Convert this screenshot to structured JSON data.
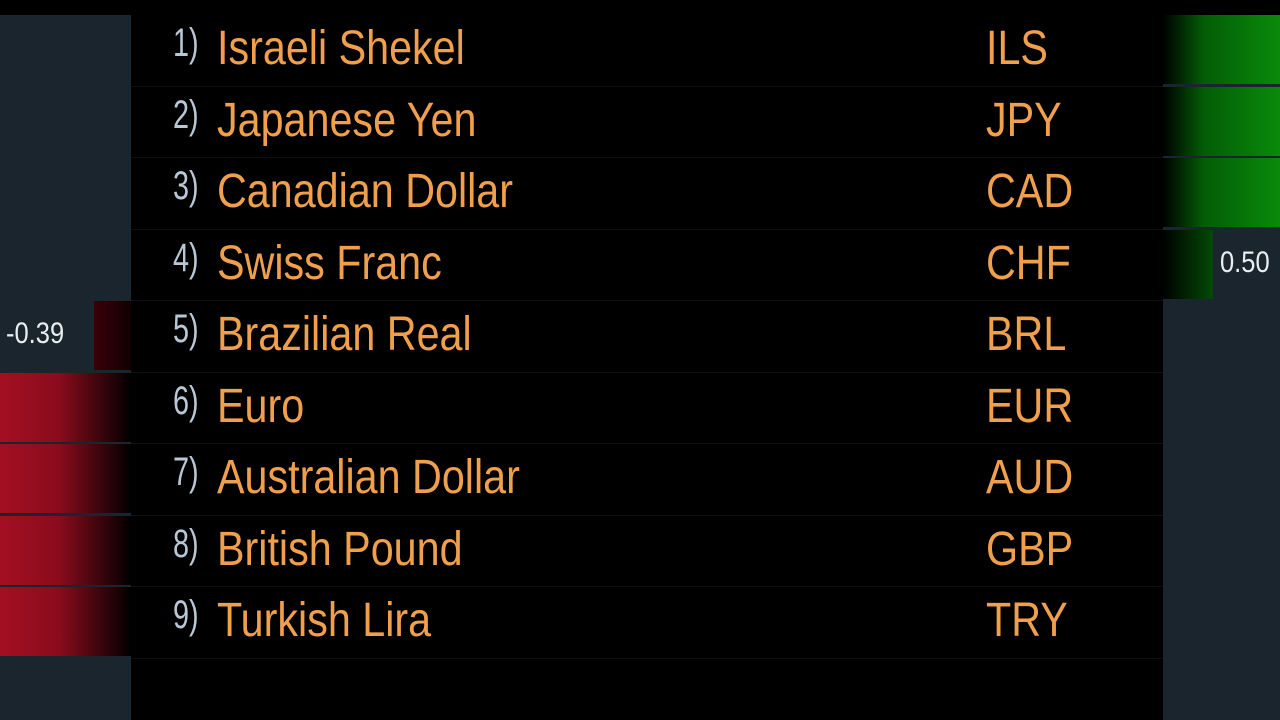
{
  "currencies": [
    {
      "index": "1)",
      "name": "Israeli Shekel",
      "code": "ILS"
    },
    {
      "index": "2)",
      "name": "Japanese Yen",
      "code": "JPY"
    },
    {
      "index": "3)",
      "name": "Canadian Dollar",
      "code": "CAD"
    },
    {
      "index": "4)",
      "name": "Swiss Franc",
      "code": "CHF"
    },
    {
      "index": "5)",
      "name": "Brazilian Real",
      "code": "BRL"
    },
    {
      "index": "6)",
      "name": "Euro",
      "code": "EUR"
    },
    {
      "index": "7)",
      "name": "Australian Dollar",
      "code": "AUD"
    },
    {
      "index": "8)",
      "name": "British Pound",
      "code": "GBP"
    },
    {
      "index": "9)",
      "name": "Turkish Lira",
      "code": "TRY"
    }
  ],
  "left_bars": {
    "label": "-0.39",
    "color": "#a30f22"
  },
  "right_bars": {
    "label": "0.50",
    "color": "#0a8a0a"
  }
}
